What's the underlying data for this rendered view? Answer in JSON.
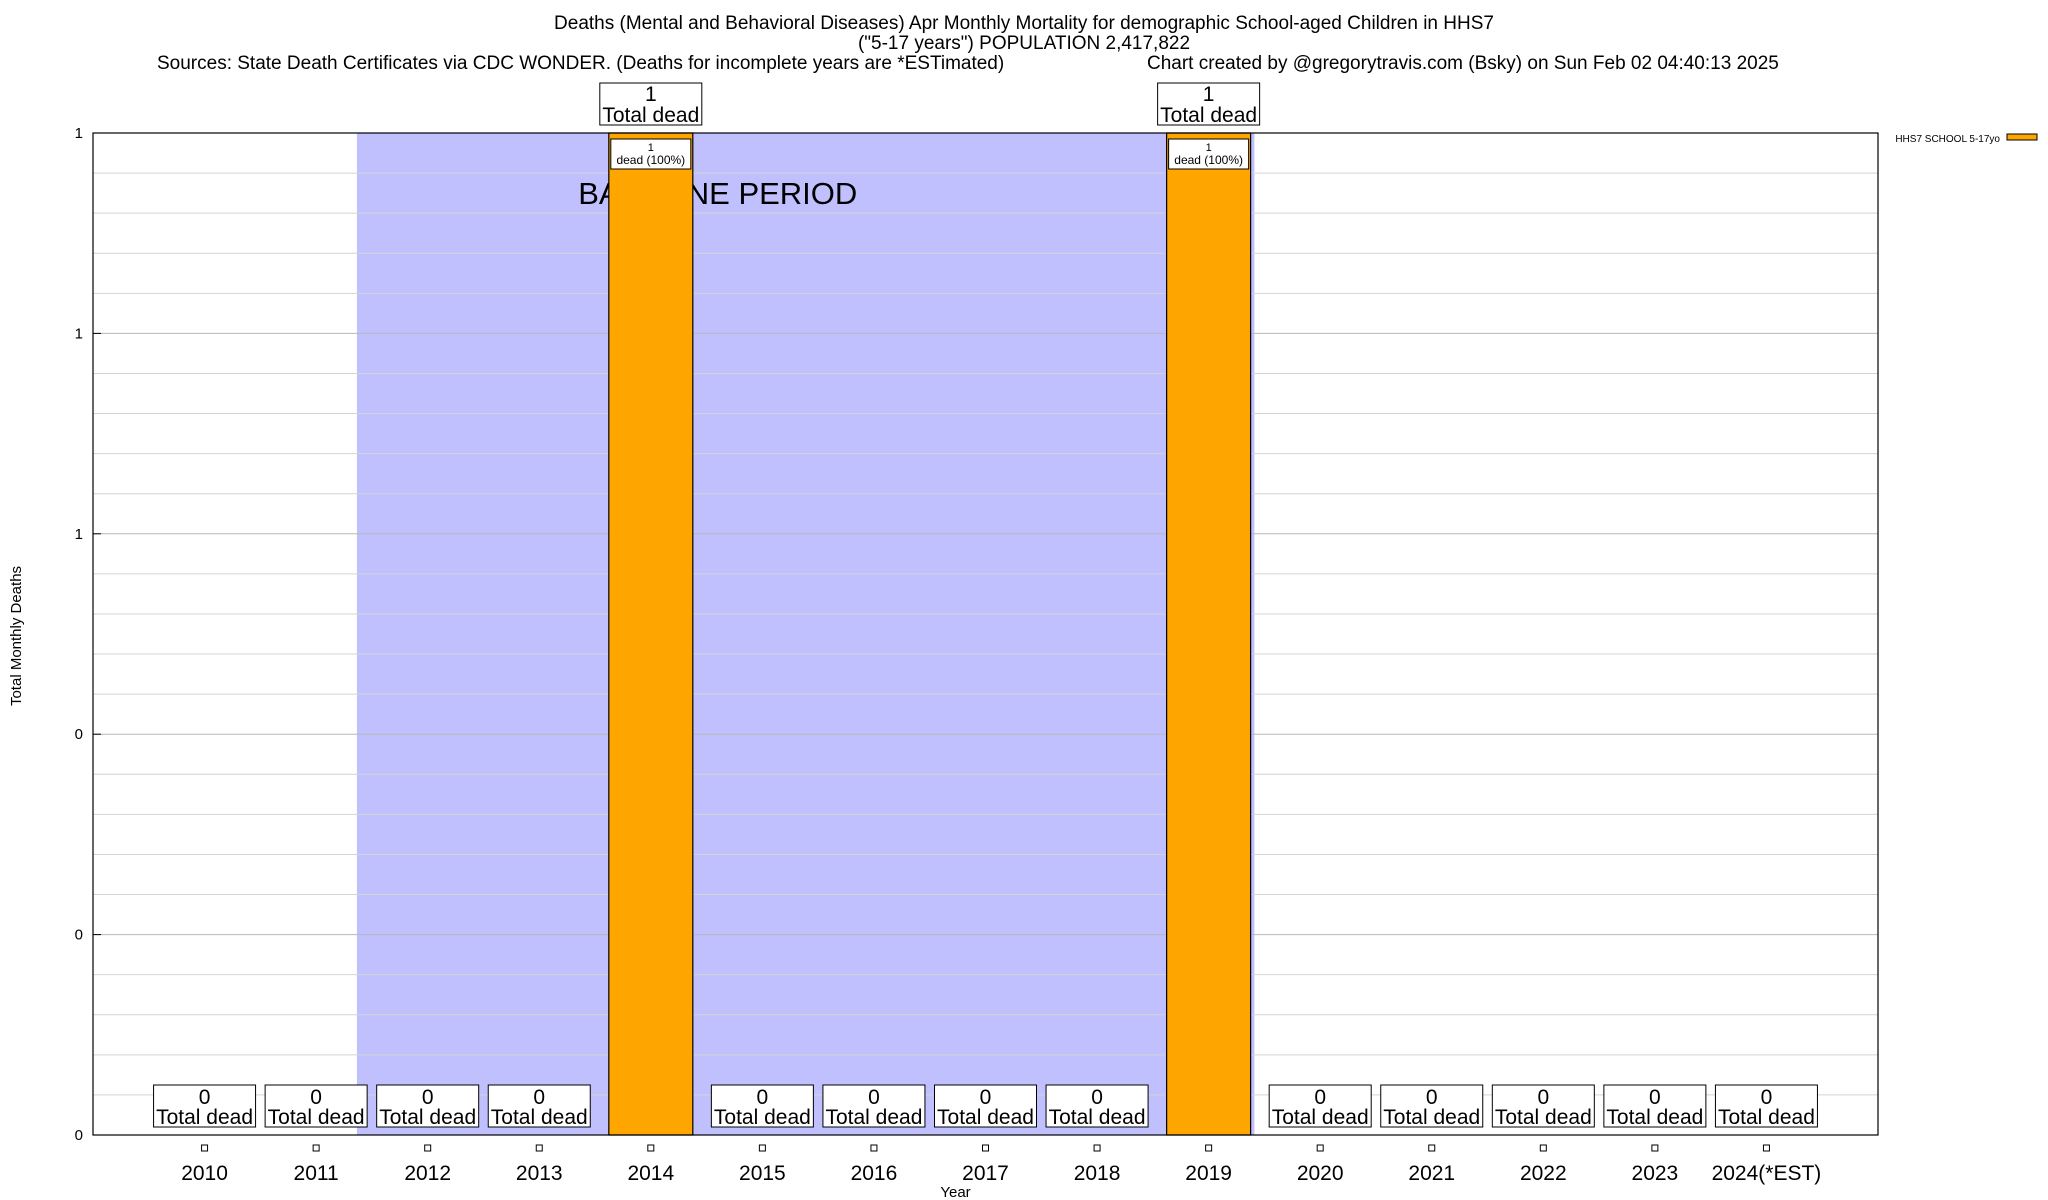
{
  "header": {
    "title_line1": "Deaths (Mental and Behavioral Diseases) Apr Monthly Mortality for demographic School-aged Children in HHS7",
    "title_line2": "(\"5-17 years\") POPULATION 2,417,822",
    "source": "Sources: State Death Certificates via CDC WONDER. (Deaths for incomplete years are *ESTimated)",
    "credit": "Chart created by @gregorytravis.com (Bsky) on Sun Feb 02 04:40:13 2025"
  },
  "chart_data": {
    "type": "bar",
    "title": "Deaths (Mental and Behavioral Diseases) Apr Monthly Mortality for demographic School-aged Children in HHS7",
    "subtitle": "(\"5-17 years\") POPULATION 2,417,822",
    "xlabel": "Year",
    "ylabel": "Total Monthly Deaths",
    "categories": [
      "2010",
      "2011",
      "2012",
      "2013",
      "2014",
      "2015",
      "2016",
      "2017",
      "2018",
      "2019",
      "2020",
      "2021",
      "2022",
      "2023",
      "2024(*EST)"
    ],
    "series": [
      {
        "name": "HHS7 SCHOOL 5-17yo",
        "color": "#ffa500",
        "values": [
          0,
          0,
          0,
          0,
          1,
          0,
          0,
          0,
          0,
          1,
          0,
          0,
          0,
          0,
          0
        ]
      }
    ],
    "ylim": [
      0,
      1
    ],
    "yticks": [
      0,
      0.2,
      0.4,
      0.6,
      0.8,
      1
    ],
    "ytick_labels": [
      "0",
      "0",
      "0",
      "1",
      "1",
      "1"
    ],
    "grid": true,
    "legend_position": "top-right",
    "total_label_text": "Total dead",
    "segment_labels": [
      {
        "category": "2014",
        "text_line1": "1",
        "text_line2": "dead (100%)"
      },
      {
        "category": "2019",
        "text_line1": "1",
        "text_line2": "dead (100%)"
      }
    ],
    "baseline_period": {
      "label": "BASELINE PERIOD",
      "from": "2012",
      "to": "2019",
      "color": "#c0c0ff"
    }
  }
}
